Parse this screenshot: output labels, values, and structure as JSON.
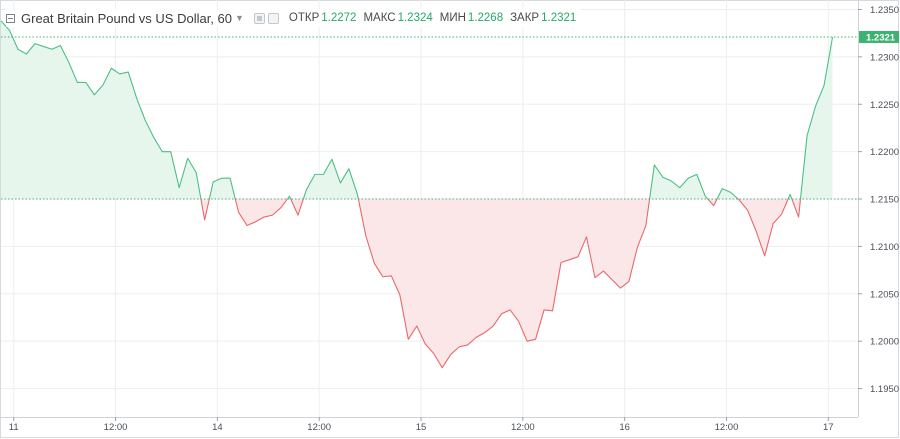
{
  "header": {
    "title": "Great Britain Pound vs US Dollar, 60",
    "open_label": "ОТКР",
    "open_value": "1.2272",
    "high_label": "МАКС",
    "high_value": "1.2324",
    "low_label": "МИН",
    "low_value": "1.2268",
    "close_label": "ЗАКР",
    "close_value": "1.2321"
  },
  "colors": {
    "up_line": "#4cbf88",
    "up_fill": "#e6f5ec",
    "down_line": "#e8696b",
    "down_fill": "#fbe6e6",
    "last_price_bg": "#3cb371",
    "grid": "#eceef1"
  },
  "chart_data": {
    "type": "area",
    "baseline": 1.215,
    "last_price": "1.2321",
    "ylim": [
      1.192,
      1.236
    ],
    "y_ticks": [
      "1.2350",
      "1.2300",
      "1.2250",
      "1.2200",
      "1.2150",
      "1.2100",
      "1.2050",
      "1.2000",
      "1.1950"
    ],
    "y_tick_values": [
      1.235,
      1.23,
      1.225,
      1.22,
      1.215,
      1.21,
      1.205,
      1.2,
      1.195
    ],
    "x_ticks": [
      "11",
      "12:00",
      "14",
      "12:00",
      "15",
      "12:00",
      "16",
      "12:00",
      "17"
    ],
    "x_tick_positions": [
      1.5,
      13.5,
      25.5,
      37.5,
      49.5,
      61.5,
      73.5,
      85.5,
      97.5
    ],
    "x_range": [
      0,
      101
    ],
    "values": [
      1.2338,
      1.2328,
      1.2308,
      1.2303,
      1.2314,
      1.2311,
      1.2308,
      1.2312,
      1.2294,
      1.2273,
      1.2273,
      1.226,
      1.227,
      1.2288,
      1.2282,
      1.2284,
      1.2256,
      1.2233,
      1.2215,
      1.22,
      1.22,
      1.2162,
      1.2193,
      1.2178,
      1.2128,
      1.2168,
      1.2172,
      1.2172,
      1.2136,
      1.2122,
      1.2126,
      1.2131,
      1.2133,
      1.2141,
      1.2153,
      1.2133,
      1.216,
      1.2176,
      1.2176,
      1.2192,
      1.2167,
      1.2182,
      1.2155,
      1.2111,
      1.2082,
      1.2068,
      1.2069,
      1.2049,
      1.2002,
      1.2016,
      1.1997,
      1.1987,
      1.1972,
      1.1986,
      1.1994,
      1.1996,
      1.2004,
      1.2009,
      1.2016,
      1.2029,
      1.2033,
      1.2021,
      1.2,
      1.2002,
      1.2033,
      1.2032,
      1.2083,
      1.2086,
      1.2089,
      1.211,
      1.2067,
      1.2074,
      1.2065,
      1.2056,
      1.2063,
      1.2099,
      1.2122,
      1.2186,
      1.2173,
      1.2169,
      1.2162,
      1.2172,
      1.2176,
      1.2153,
      1.2143,
      1.2161,
      1.2157,
      1.2149,
      1.2138,
      1.2116,
      1.209,
      1.2124,
      1.2134,
      1.2155,
      1.2131,
      1.2217,
      1.2248,
      1.227,
      1.2321
    ]
  }
}
